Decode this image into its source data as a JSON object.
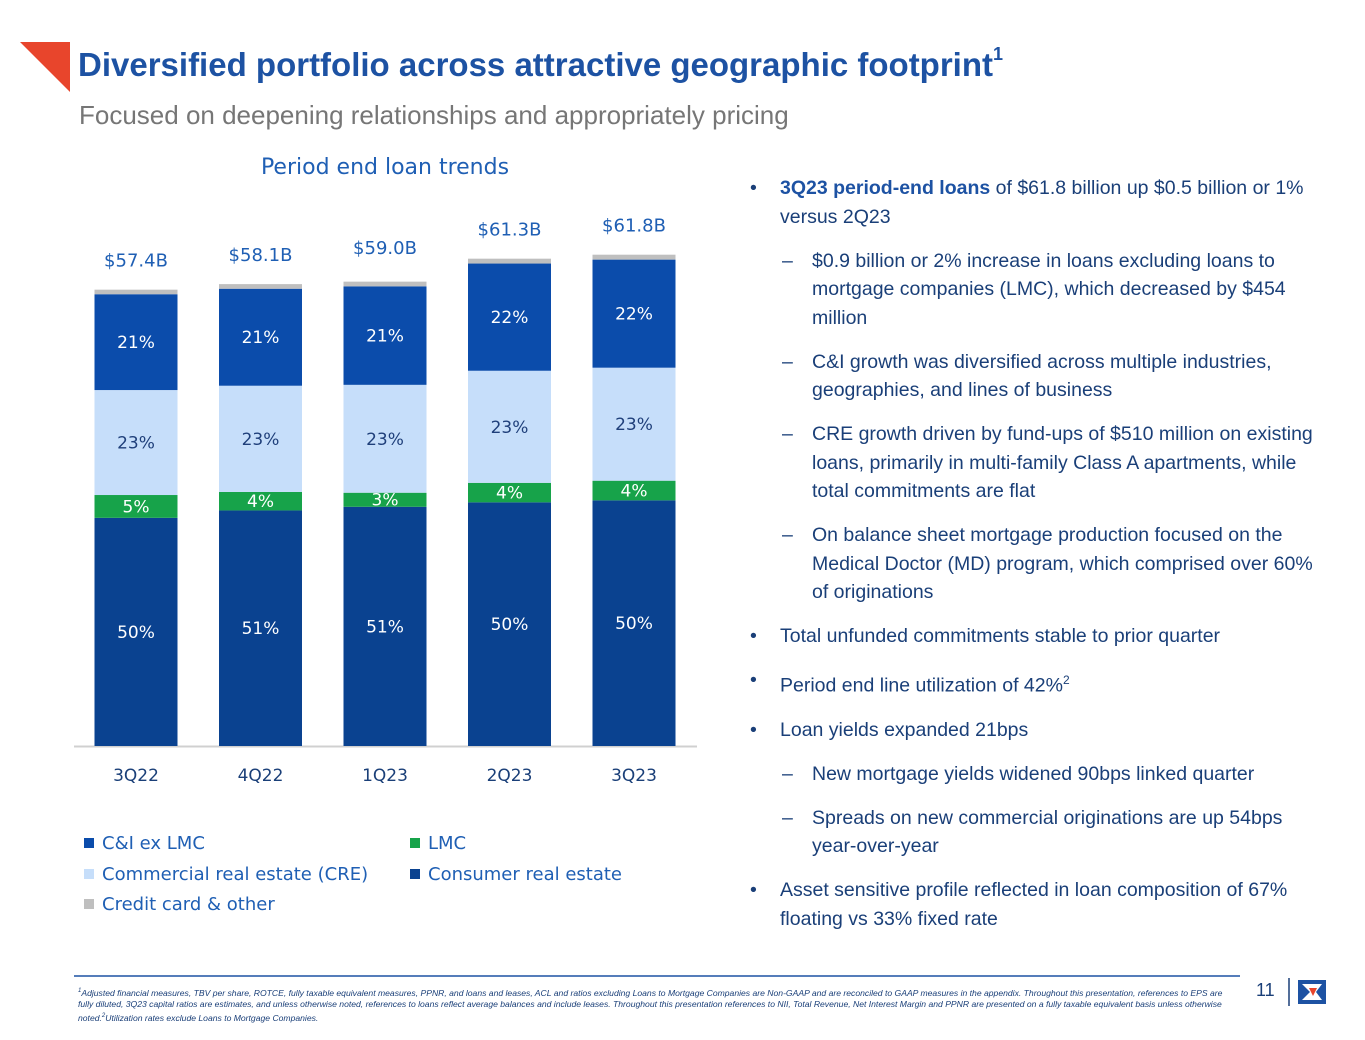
{
  "header": {
    "title": "Diversified portfolio across attractive geographic footprint",
    "title_note": "1",
    "subtitle": "Focused on deepening relationships and appropriately pricing"
  },
  "chart_data": {
    "type": "stacked_bar",
    "title": "Period end loan trends",
    "categories": [
      "3Q22",
      "4Q22",
      "1Q23",
      "2Q23",
      "3Q23"
    ],
    "totals": {
      "values": [
        57.4,
        58.1,
        59.0,
        61.3,
        61.8
      ],
      "value_labels": [
        "$57.4B",
        "$58.1B",
        "$59.0B",
        "$61.3B",
        "$61.8B"
      ]
    },
    "series": [
      {
        "name": "Consumer real estate",
        "color": "#0a4290",
        "label_color": "#ffffff",
        "values": [
          50,
          51,
          51,
          50,
          50
        ],
        "value_labels": [
          "50%",
          "51%",
          "51%",
          "50%",
          "50%"
        ]
      },
      {
        "name": "LMC",
        "color": "#17a34a",
        "label_color": "#ffffff",
        "values": [
          5,
          4,
          3,
          4,
          4
        ],
        "value_labels": [
          "5%",
          "4%",
          "3%",
          "4%",
          "4%"
        ]
      },
      {
        "name": "Commercial real estate (CRE)",
        "color": "#c6defa",
        "label_color": "#1f3f7a",
        "values": [
          23,
          23,
          23,
          23,
          23
        ],
        "value_labels": [
          "23%",
          "23%",
          "23%",
          "23%",
          "23%"
        ]
      },
      {
        "name": "C&I ex LMC",
        "color": "#0b4cab",
        "label_color": "#ffffff",
        "values": [
          21,
          21,
          21,
          22,
          22
        ],
        "value_labels": [
          "21%",
          "21%",
          "21%",
          "22%",
          "22%"
        ]
      },
      {
        "name": "Credit card & other",
        "color": "#bfbfbf",
        "values": [
          1,
          1,
          1,
          1,
          1
        ]
      }
    ]
  },
  "bullets": [
    {
      "level": 1,
      "bold": "3Q23 period-end loans",
      "text": " of $61.8 billion up $0.5 billion or 1% versus 2Q23"
    },
    {
      "level": 2,
      "text": "$0.9 billion or 2% increase in loans excluding loans to mortgage companies (LMC), which decreased by $454 million"
    },
    {
      "level": 2,
      "text": "C&I growth was diversified across multiple industries, geographies, and lines of business"
    },
    {
      "level": 2,
      "text": "CRE growth driven by fund-ups of $510 million on existing loans, primarily in multi-family Class A apartments, while total commitments are flat"
    },
    {
      "level": 2,
      "text": "On balance sheet mortgage production focused on the Medical Doctor (MD) program, which comprised over 60% of originations"
    },
    {
      "level": 1,
      "text": "Total unfunded commitments stable to prior quarter"
    },
    {
      "level": 1,
      "text": "Period end line utilization of 42%",
      "note": "2"
    },
    {
      "level": 1,
      "text": "Loan yields expanded 21bps"
    },
    {
      "level": 2,
      "text": "New mortgage yields widened 90bps linked quarter"
    },
    {
      "level": 2,
      "text": "Spreads on new commercial originations are up 54bps year-over-year"
    },
    {
      "level": 1,
      "text": "Asset sensitive profile reflected in loan composition of 67% floating vs 33% fixed rate"
    }
  ],
  "footnote": {
    "note1": "1",
    "text1": "Adjusted financial measures, TBV per share, ROTCE, fully taxable equivalent measures, PPNR, and loans and leases, ACL and ratios excluding Loans to Mortgage Companies are Non-GAAP and are reconciled to GAAP measures in the appendix. Throughout this presentation, references to EPS are fully diluted, 3Q23 capital ratios are estimates, and unless otherwise noted, references to loans reflect average balances and include leases. Throughout this presentation references to NII, Total Revenue, Net Interest Margin and PPNR are presented on a fully taxable equivalent basis unless otherwise noted.",
    "note2": "2",
    "text2": "Utilization rates exclude Loans to Mortgage Companies."
  },
  "page_number": "11"
}
